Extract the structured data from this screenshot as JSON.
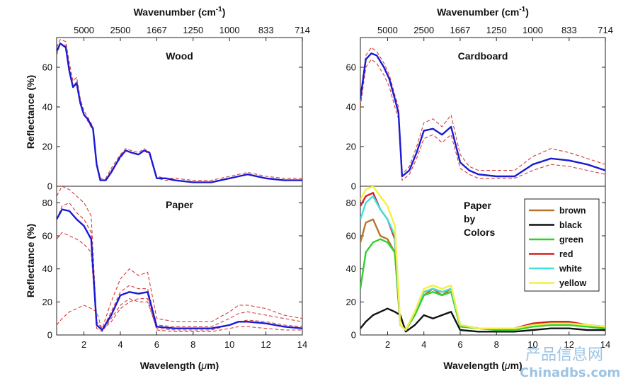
{
  "watermark": {
    "cn": "产品信息网",
    "en": "Chinadbs.com"
  },
  "chart_data": [
    {
      "type": "line",
      "title": "Wood",
      "xlabel": "",
      "ylabel": "Reflectance (%)",
      "top_axis_label": "Wavenumber (cm",
      "top_axis_sup": "-1",
      "top_axis_close": ")",
      "top_ticks": [
        "5000",
        "2500",
        "1667",
        "1250",
        "1000",
        "833",
        "714"
      ],
      "xlim": [
        0.5,
        14
      ],
      "ylim": [
        0,
        75
      ],
      "yticks": [
        "0",
        "20",
        "40",
        "60"
      ],
      "series": [
        {
          "color": "#d23c3c",
          "dashed": true,
          "x": [
            0.5,
            0.7,
            1.0,
            1.2,
            1.4,
            1.6,
            1.8,
            2.0,
            2.2,
            2.5,
            2.7,
            2.9,
            3.2,
            3.5,
            4.0,
            4.3,
            4.6,
            5.0,
            5.3,
            5.6,
            6.0,
            6.5,
            7,
            8,
            9,
            10,
            10.5,
            11,
            12,
            13,
            14
          ],
          "y": [
            66,
            72,
            71,
            60,
            50,
            53,
            42,
            36,
            33,
            28,
            10,
            3,
            3,
            8,
            14,
            18,
            17,
            16,
            18,
            16,
            4,
            3,
            3,
            2,
            2,
            4,
            5,
            6,
            4,
            3,
            3
          ]
        },
        {
          "color": "#d23c3c",
          "dashed": true,
          "x": [
            0.5,
            0.7,
            1.0,
            1.2,
            1.4,
            1.6,
            1.8,
            2.0,
            2.2,
            2.5,
            2.7,
            2.9,
            3.2,
            3.5,
            4.0,
            4.3,
            4.6,
            5.0,
            5.3,
            5.6,
            6.0,
            6.5,
            7,
            8,
            9,
            10,
            10.5,
            11,
            12,
            13,
            14
          ],
          "y": [
            70,
            74,
            73,
            62,
            53,
            55,
            44,
            38,
            35,
            30,
            12,
            4,
            4,
            9,
            16,
            19,
            18,
            17,
            19,
            17,
            5,
            4,
            4,
            3,
            3,
            5,
            6,
            7,
            5,
            4,
            4
          ]
        },
        {
          "color": "#1a1ad2",
          "dashed": false,
          "x": [
            0.5,
            0.7,
            1.0,
            1.2,
            1.4,
            1.6,
            1.8,
            2.0,
            2.2,
            2.5,
            2.7,
            2.9,
            3.2,
            3.5,
            4.0,
            4.3,
            4.6,
            5.0,
            5.3,
            5.6,
            6.0,
            6.5,
            7,
            8,
            9,
            10,
            10.5,
            11,
            12,
            13,
            14
          ],
          "y": [
            68,
            72,
            70,
            58,
            50,
            52,
            42,
            36,
            34,
            29,
            11,
            3,
            3,
            7,
            15,
            18,
            17,
            16,
            18,
            17,
            4,
            4,
            3,
            2,
            2,
            4,
            5,
            6,
            4,
            3,
            3
          ]
        }
      ]
    },
    {
      "type": "line",
      "title": "Cardboard",
      "xlabel": "",
      "ylabel": "",
      "top_axis_label": "Wavenumber (cm",
      "top_axis_sup": "-1",
      "top_axis_close": ")",
      "top_ticks": [
        "5000",
        "2500",
        "1667",
        "1250",
        "1000",
        "833",
        "714"
      ],
      "xlim": [
        0.5,
        14
      ],
      "ylim": [
        0,
        75
      ],
      "yticks": [
        "0",
        "20",
        "40",
        "60"
      ],
      "series": [
        {
          "color": "#d23c3c",
          "dashed": true,
          "x": [
            0.5,
            0.8,
            1.1,
            1.4,
            1.8,
            2.1,
            2.4,
            2.6,
            2.8,
            3.2,
            3.6,
            4.0,
            4.5,
            5.0,
            5.5,
            6.0,
            6.5,
            7,
            8,
            9,
            10,
            11,
            12,
            13,
            14
          ],
          "y": [
            46,
            66,
            70,
            68,
            62,
            56,
            46,
            40,
            6,
            10,
            20,
            32,
            34,
            30,
            36,
            16,
            10,
            8,
            8,
            8,
            15,
            19,
            17,
            14,
            11
          ]
        },
        {
          "color": "#d23c3c",
          "dashed": true,
          "x": [
            0.5,
            0.8,
            1.1,
            1.4,
            1.8,
            2.1,
            2.4,
            2.6,
            2.8,
            3.2,
            3.6,
            4.0,
            4.5,
            5.0,
            5.5,
            6.0,
            6.5,
            7,
            8,
            9,
            10,
            11,
            12,
            13,
            14
          ],
          "y": [
            40,
            60,
            64,
            62,
            56,
            50,
            40,
            34,
            3,
            6,
            14,
            24,
            26,
            22,
            26,
            9,
            6,
            4,
            4,
            4,
            8,
            11,
            10,
            8,
            6
          ]
        },
        {
          "color": "#1a1ad2",
          "dashed": false,
          "x": [
            0.5,
            0.8,
            1.1,
            1.4,
            1.8,
            2.1,
            2.4,
            2.6,
            2.8,
            3.2,
            3.6,
            4.0,
            4.5,
            5.0,
            5.5,
            6.0,
            6.5,
            7,
            8,
            9,
            10,
            11,
            12,
            13,
            14
          ],
          "y": [
            44,
            64,
            67,
            66,
            60,
            54,
            44,
            37,
            5,
            8,
            17,
            28,
            29,
            26,
            30,
            12,
            8,
            6,
            5,
            5,
            11,
            14,
            13,
            11,
            8
          ]
        }
      ]
    },
    {
      "type": "line",
      "title": "Paper",
      "xlabel": "Wavelength (",
      "xlabel_mu": "μ",
      "xlabel_close": "m)",
      "ylabel": "Reflectance (%)",
      "xlim": [
        0.5,
        14
      ],
      "ylim": [
        0,
        90
      ],
      "xticks": [
        "2",
        "4",
        "6",
        "8",
        "10",
        "12",
        "14"
      ],
      "yticks": [
        "0",
        "20",
        "40",
        "60",
        "80"
      ],
      "series": [
        {
          "color": "#d23c3c",
          "dashed": true,
          "x": [
            0.5,
            0.8,
            1.2,
            1.6,
            2.0,
            2.4,
            2.7,
            3.0,
            3.5,
            4.0,
            4.5,
            5.0,
            5.5,
            6,
            7,
            8,
            9,
            10,
            10.5,
            11,
            12,
            13,
            14
          ],
          "y": [
            84,
            90,
            88,
            84,
            80,
            72,
            8,
            4,
            20,
            34,
            40,
            36,
            38,
            10,
            8,
            8,
            8,
            14,
            18,
            18,
            16,
            12,
            10
          ]
        },
        {
          "color": "#d23c3c",
          "dashed": true,
          "x": [
            0.5,
            0.8,
            1.2,
            1.6,
            2.0,
            2.4,
            2.7,
            3.0,
            3.5,
            4.0,
            4.5,
            5.0,
            5.5,
            6,
            7,
            8,
            9,
            10,
            10.5,
            11,
            12,
            13,
            14
          ],
          "y": [
            70,
            78,
            80,
            74,
            70,
            62,
            6,
            3,
            14,
            26,
            30,
            28,
            28,
            6,
            5,
            5,
            5,
            10,
            13,
            14,
            12,
            10,
            8
          ]
        },
        {
          "color": "#d23c3c",
          "dashed": true,
          "x": [
            0.5,
            0.8,
            1.2,
            1.6,
            2.0,
            2.4,
            2.7,
            3.0,
            3.5,
            4.0,
            4.5,
            5.0,
            5.5,
            6,
            7,
            8,
            9,
            10,
            10.5,
            11,
            12,
            13,
            14
          ],
          "y": [
            58,
            62,
            60,
            58,
            55,
            50,
            4,
            2,
            10,
            18,
            22,
            20,
            20,
            4,
            3,
            3,
            3,
            6,
            8,
            9,
            8,
            6,
            5
          ]
        },
        {
          "color": "#d23c3c",
          "dashed": true,
          "x": [
            0.5,
            0.8,
            1.2,
            1.6,
            2.0,
            2.4,
            2.7,
            3.0,
            3.5,
            4.0,
            4.5,
            5.0,
            5.5,
            6,
            7,
            8,
            9,
            10,
            10.5,
            11,
            12,
            13,
            14
          ],
          "y": [
            6,
            10,
            14,
            16,
            18,
            16,
            14,
            3,
            8,
            16,
            20,
            22,
            22,
            3,
            2,
            2,
            2,
            4,
            5,
            5,
            4,
            3,
            3
          ]
        },
        {
          "color": "#1a1ad2",
          "dashed": false,
          "x": [
            0.5,
            0.8,
            1.2,
            1.6,
            2.0,
            2.4,
            2.7,
            3.0,
            3.5,
            4.0,
            4.5,
            5.0,
            5.5,
            6,
            7,
            8,
            9,
            10,
            10.5,
            11,
            12,
            13,
            14
          ],
          "y": [
            70,
            76,
            75,
            70,
            66,
            58,
            6,
            3,
            12,
            24,
            26,
            25,
            26,
            5,
            4,
            4,
            4,
            6,
            8,
            8,
            7,
            5,
            4
          ]
        }
      ]
    },
    {
      "type": "line",
      "title": "Paper",
      "title_lines": [
        "Paper",
        "by",
        "Colors"
      ],
      "xlabel": "Wavelength (",
      "xlabel_mu": "μ",
      "xlabel_close": "m)",
      "ylabel": "",
      "xlim": [
        0.5,
        14
      ],
      "ylim": [
        0,
        90
      ],
      "xticks": [
        "2",
        "4",
        "6",
        "8",
        "10",
        "12",
        "14"
      ],
      "yticks": [
        "0",
        "20",
        "40",
        "60",
        "80"
      ],
      "legend_position": "top-right",
      "series": [
        {
          "name": "brown",
          "color": "#b8742a",
          "dashed": false,
          "x": [
            0.5,
            0.8,
            1.2,
            1.6,
            2.0,
            2.4,
            2.7,
            3.0,
            3.5,
            4.0,
            4.5,
            5.0,
            5.5,
            6,
            7,
            8,
            9,
            10,
            11,
            12,
            13,
            14
          ],
          "y": [
            56,
            68,
            70,
            60,
            58,
            50,
            6,
            3,
            12,
            24,
            28,
            24,
            28,
            6,
            4,
            4,
            4,
            6,
            8,
            8,
            6,
            5
          ]
        },
        {
          "name": "black",
          "color": "#111111",
          "dashed": false,
          "x": [
            0.5,
            0.8,
            1.2,
            1.6,
            2.0,
            2.4,
            2.7,
            3.0,
            3.5,
            4.0,
            4.5,
            5.0,
            5.5,
            6,
            7,
            8,
            9,
            10,
            11,
            12,
            13,
            14
          ],
          "y": [
            4,
            8,
            12,
            14,
            16,
            14,
            12,
            2,
            6,
            12,
            10,
            12,
            14,
            3,
            2,
            2,
            2,
            3,
            4,
            4,
            3,
            3
          ]
        },
        {
          "name": "green",
          "color": "#2fd12f",
          "dashed": false,
          "x": [
            0.5,
            0.8,
            1.2,
            1.6,
            2.0,
            2.4,
            2.7,
            3.0,
            3.5,
            4.0,
            4.5,
            5.0,
            5.5,
            6,
            7,
            8,
            9,
            10,
            11,
            12,
            13,
            14
          ],
          "y": [
            28,
            50,
            56,
            58,
            56,
            50,
            6,
            3,
            12,
            24,
            26,
            24,
            26,
            5,
            4,
            3,
            3,
            5,
            6,
            6,
            5,
            4
          ]
        },
        {
          "name": "red",
          "color": "#d42020",
          "dashed": false,
          "x": [
            0.5,
            0.8,
            1.2,
            1.6,
            2.0,
            2.4,
            2.7,
            3.0,
            3.5,
            4.0,
            4.5,
            5.0,
            5.5,
            6,
            7,
            8,
            9,
            10,
            11,
            12,
            13,
            14
          ],
          "y": [
            78,
            84,
            86,
            76,
            70,
            58,
            6,
            3,
            14,
            26,
            28,
            26,
            28,
            6,
            4,
            4,
            4,
            7,
            8,
            8,
            6,
            5
          ]
        },
        {
          "name": "white",
          "color": "#3fe0e0",
          "dashed": false,
          "x": [
            0.5,
            0.8,
            1.2,
            1.6,
            2.0,
            2.4,
            2.7,
            3.0,
            3.5,
            4.0,
            4.5,
            5.0,
            5.5,
            6,
            7,
            8,
            9,
            10,
            11,
            12,
            13,
            14
          ],
          "y": [
            70,
            80,
            84,
            76,
            70,
            60,
            6,
            3,
            14,
            26,
            28,
            26,
            28,
            6,
            4,
            4,
            4,
            6,
            7,
            7,
            6,
            5
          ]
        },
        {
          "name": "yellow",
          "color": "#f4f040",
          "dashed": false,
          "x": [
            0.5,
            0.8,
            1.2,
            1.6,
            2.0,
            2.4,
            2.7,
            3.0,
            3.5,
            4.0,
            4.5,
            5.0,
            5.5,
            6,
            7,
            8,
            9,
            10,
            11,
            12,
            13,
            14
          ],
          "y": [
            82,
            88,
            90,
            84,
            78,
            66,
            6,
            3,
            14,
            28,
            30,
            28,
            30,
            6,
            4,
            4,
            4,
            6,
            7,
            7,
            6,
            5
          ]
        }
      ]
    }
  ]
}
